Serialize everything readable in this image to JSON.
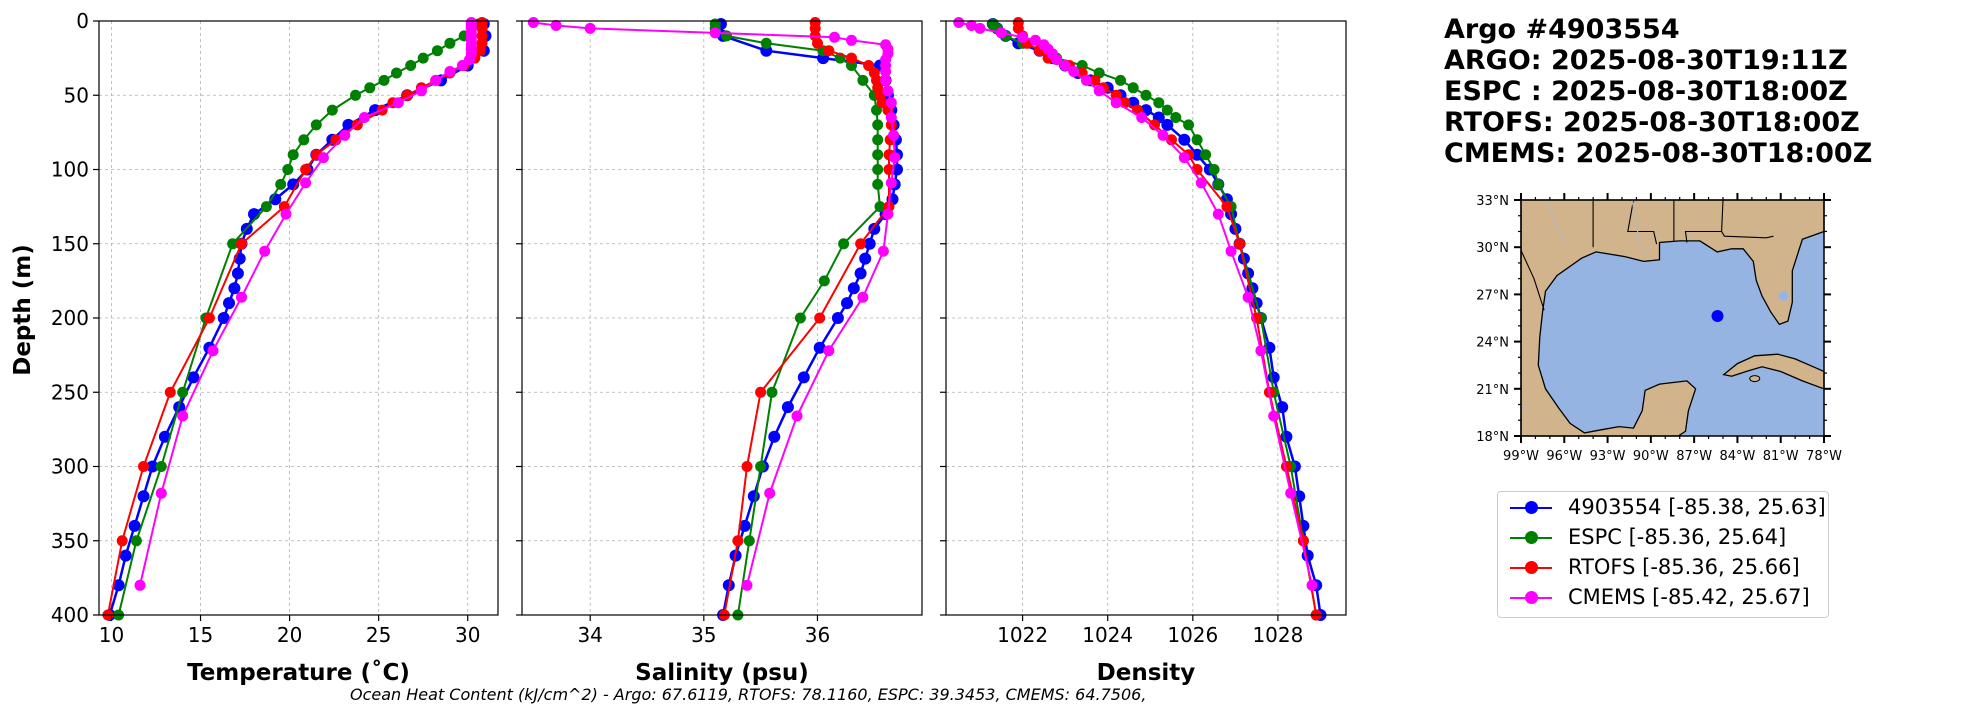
{
  "title": {
    "lines": [
      "Argo #4903554",
      "ARGO: 2025-08-30T19:11Z",
      "ESPC : 2025-08-30T18:00Z",
      "RTOFS: 2025-08-30T18:00Z",
      "CMEMS: 2025-08-30T18:00Z"
    ]
  },
  "footer": "Ocean Heat Content (kJ/cm^2) - Argo: 67.6119,  RTOFS: 78.1160,  ESPC: 39.3453,  CMEMS: 64.7506,",
  "legend": [
    {
      "label": "4903554 [-85.38, 25.63]",
      "color": "#0000ff"
    },
    {
      "label": "ESPC [-85.36, 25.64]",
      "color": "#008000"
    },
    {
      "label": "RTOFS [-85.36, 25.66]",
      "color": "#ff0000"
    },
    {
      "label": "CMEMS [-85.42, 25.67]",
      "color": "#ff00ff"
    }
  ],
  "colors": {
    "argo": "#0000ff",
    "espc": "#008000",
    "rtofs": "#ff0000",
    "cmems": "#ff00ff",
    "land": "#d2b48c",
    "water": "#96b4e1"
  },
  "chart_data": [
    {
      "type": "line",
      "xlabel": "Temperature (˚C)",
      "ylabel": "Depth (m)",
      "xlim": [
        9.3,
        31.7
      ],
      "ylim": [
        400,
        0
      ],
      "xticks": [
        10,
        15,
        20,
        25,
        30
      ],
      "yticks": [
        0,
        50,
        100,
        150,
        200,
        250,
        300,
        350,
        400
      ],
      "grid": true,
      "series": [
        {
          "key": "argo",
          "depth": [
            2,
            10,
            20,
            30,
            40,
            50,
            60,
            70,
            80,
            90,
            100,
            110,
            120,
            130,
            140,
            150,
            160,
            170,
            180,
            190,
            200,
            220,
            240,
            260,
            280,
            300,
            320,
            340,
            360,
            380,
            400
          ],
          "values": [
            30.9,
            31.0,
            30.9,
            30.0,
            28.5,
            26.6,
            24.8,
            23.3,
            22.4,
            21.5,
            21.0,
            20.2,
            19.2,
            18.0,
            17.6,
            17.3,
            17.2,
            17.1,
            16.9,
            16.6,
            16.3,
            15.5,
            14.6,
            13.8,
            13.0,
            12.3,
            11.8,
            11.3,
            10.8,
            10.4,
            9.9
          ]
        },
        {
          "key": "espc",
          "depth": [
            2,
            5,
            10,
            15,
            20,
            25,
            30,
            35,
            40,
            45,
            50,
            60,
            70,
            80,
            90,
            100,
            110,
            125,
            150,
            200,
            250,
            300,
            350,
            400
          ],
          "values": [
            30.6,
            30.2,
            29.8,
            29.0,
            28.3,
            27.5,
            26.8,
            26.0,
            25.3,
            24.5,
            23.7,
            22.4,
            21.5,
            20.8,
            20.2,
            19.9,
            19.5,
            18.7,
            16.8,
            15.3,
            14.0,
            12.8,
            11.4,
            10.4
          ]
        },
        {
          "key": "rtofs",
          "depth": [
            1,
            5,
            10,
            15,
            20,
            25,
            30,
            35,
            40,
            45,
            50,
            55,
            60,
            70,
            80,
            90,
            100,
            125,
            150,
            200,
            250,
            300,
            350,
            400
          ],
          "values": [
            30.8,
            30.8,
            30.8,
            30.8,
            30.7,
            30.4,
            29.8,
            29.0,
            28.2,
            27.4,
            26.6,
            25.8,
            25.2,
            23.8,
            22.6,
            21.5,
            20.9,
            19.7,
            17.3,
            15.5,
            13.3,
            11.8,
            10.6,
            9.8
          ]
        },
        {
          "key": "cmems",
          "depth": [
            1,
            3,
            5,
            8,
            11,
            13,
            16,
            19,
            22,
            26,
            30,
            34,
            40,
            47,
            55,
            65,
            77,
            92,
            109,
            130,
            155,
            186,
            222,
            266,
            318,
            380
          ],
          "values": [
            30.2,
            30.2,
            30.2,
            30.2,
            30.2,
            30.2,
            30.2,
            30.2,
            30.2,
            30.1,
            29.7,
            29.0,
            28.2,
            27.4,
            26.1,
            24.2,
            23.1,
            21.9,
            20.9,
            19.8,
            18.6,
            17.3,
            15.7,
            14.0,
            12.8,
            11.6
          ]
        }
      ]
    },
    {
      "type": "line",
      "xlabel": "Salinity (psu)",
      "xlim": [
        33.4,
        36.92
      ],
      "ylim": [
        400,
        0
      ],
      "xticks": [
        34,
        35,
        36
      ],
      "grid": true,
      "series": [
        {
          "key": "argo",
          "depth": [
            2,
            10,
            20,
            25,
            30,
            40,
            50,
            60,
            70,
            80,
            90,
            100,
            110,
            120,
            130,
            140,
            150,
            160,
            170,
            180,
            190,
            200,
            220,
            240,
            260,
            280,
            300,
            320,
            340,
            360,
            380,
            400
          ],
          "values": [
            35.15,
            35.17,
            35.55,
            36.05,
            36.55,
            36.6,
            36.62,
            36.65,
            36.67,
            36.69,
            36.7,
            36.7,
            36.68,
            36.66,
            36.6,
            36.5,
            36.46,
            36.42,
            36.38,
            36.32,
            36.26,
            36.18,
            36.02,
            35.88,
            35.74,
            35.62,
            35.52,
            35.44,
            35.36,
            35.28,
            35.22,
            35.17
          ]
        },
        {
          "key": "espc",
          "depth": [
            2,
            5,
            10,
            15,
            20,
            25,
            30,
            40,
            50,
            60,
            70,
            80,
            90,
            100,
            110,
            125,
            150,
            175,
            200,
            250,
            300,
            350,
            400
          ],
          "values": [
            35.1,
            35.1,
            35.2,
            35.55,
            36.05,
            36.2,
            36.3,
            36.4,
            36.5,
            36.52,
            36.53,
            36.53,
            36.53,
            36.53,
            36.53,
            36.55,
            36.23,
            36.06,
            35.85,
            35.6,
            35.5,
            35.4,
            35.3
          ]
        },
        {
          "key": "rtofs",
          "depth": [
            1,
            5,
            10,
            15,
            20,
            25,
            30,
            35,
            40,
            45,
            50,
            55,
            60,
            70,
            80,
            90,
            100,
            125,
            150,
            200,
            250,
            300,
            350,
            400
          ],
          "values": [
            35.98,
            35.98,
            35.98,
            36.0,
            36.1,
            36.3,
            36.45,
            36.5,
            36.52,
            36.53,
            36.55,
            36.57,
            36.62,
            36.65,
            36.64,
            36.63,
            36.63,
            36.63,
            36.38,
            36.02,
            35.5,
            35.38,
            35.3,
            35.18
          ]
        },
        {
          "key": "cmems",
          "depth": [
            1,
            3,
            5,
            8,
            11,
            13,
            16,
            19,
            22,
            26,
            30,
            34,
            40,
            47,
            55,
            65,
            77,
            92,
            109,
            130,
            155,
            186,
            222,
            266,
            318,
            380
          ],
          "values": [
            33.5,
            33.7,
            34.0,
            35.1,
            36.15,
            36.3,
            36.6,
            36.62,
            36.62,
            36.6,
            36.6,
            36.6,
            36.6,
            36.62,
            36.65,
            36.65,
            36.67,
            36.68,
            36.65,
            36.62,
            36.58,
            36.4,
            36.1,
            35.82,
            35.58,
            35.38
          ]
        }
      ]
    },
    {
      "type": "line",
      "xlabel": "Density",
      "xlim": [
        1020.2,
        1029.6
      ],
      "ylim": [
        400,
        0
      ],
      "xticks": [
        1022,
        1024,
        1026,
        1028
      ],
      "grid": true,
      "series": [
        {
          "key": "argo",
          "depth": [
            2,
            5,
            10,
            15,
            20,
            25,
            30,
            35,
            40,
            45,
            50,
            55,
            60,
            65,
            70,
            80,
            90,
            100,
            110,
            120,
            130,
            140,
            150,
            160,
            170,
            180,
            190,
            200,
            220,
            240,
            260,
            280,
            300,
            320,
            340,
            360,
            380,
            400
          ],
          "values": [
            1021.3,
            1021.4,
            1021.6,
            1021.9,
            1022.4,
            1022.7,
            1023.0,
            1023.3,
            1023.6,
            1024.0,
            1024.3,
            1024.6,
            1024.9,
            1025.2,
            1025.4,
            1025.8,
            1026.1,
            1026.4,
            1026.6,
            1026.8,
            1026.9,
            1027.0,
            1027.1,
            1027.2,
            1027.3,
            1027.4,
            1027.5,
            1027.6,
            1027.8,
            1027.9,
            1028.1,
            1028.2,
            1028.4,
            1028.5,
            1028.6,
            1028.7,
            1028.9,
            1029.0
          ]
        },
        {
          "key": "espc",
          "depth": [
            2,
            5,
            10,
            15,
            20,
            25,
            30,
            35,
            40,
            45,
            50,
            55,
            60,
            65,
            70,
            80,
            90,
            100,
            110,
            125,
            150,
            200,
            250,
            300,
            350,
            400
          ],
          "values": [
            1021.3,
            1021.4,
            1021.6,
            1022.0,
            1022.5,
            1022.8,
            1023.4,
            1023.8,
            1024.3,
            1024.6,
            1024.9,
            1025.2,
            1025.4,
            1025.6,
            1025.9,
            1026.1,
            1026.3,
            1026.5,
            1026.6,
            1026.9,
            1027.1,
            1027.6,
            1027.9,
            1028.3,
            1028.6,
            1028.9
          ]
        },
        {
          "key": "rtofs",
          "depth": [
            1,
            5,
            10,
            15,
            20,
            25,
            30,
            35,
            40,
            45,
            50,
            55,
            60,
            70,
            80,
            90,
            100,
            125,
            150,
            200,
            250,
            300,
            350,
            400
          ],
          "values": [
            1021.9,
            1021.9,
            1022.0,
            1022.1,
            1022.4,
            1022.6,
            1023.1,
            1023.4,
            1023.7,
            1023.9,
            1024.2,
            1024.4,
            1024.7,
            1025.1,
            1025.5,
            1025.9,
            1026.1,
            1026.8,
            1027.1,
            1027.5,
            1027.8,
            1028.2,
            1028.6,
            1028.9
          ]
        },
        {
          "key": "cmems",
          "depth": [
            1,
            3,
            5,
            8,
            11,
            13,
            16,
            19,
            22,
            26,
            30,
            34,
            40,
            47,
            55,
            65,
            77,
            92,
            109,
            130,
            155,
            186,
            222,
            266,
            318,
            380
          ],
          "values": [
            1020.5,
            1020.8,
            1021.0,
            1021.5,
            1022.0,
            1022.3,
            1022.5,
            1022.6,
            1022.7,
            1022.8,
            1023.0,
            1023.2,
            1023.5,
            1023.8,
            1024.2,
            1024.8,
            1025.3,
            1025.8,
            1026.2,
            1026.6,
            1026.9,
            1027.3,
            1027.6,
            1027.9,
            1028.3,
            1028.8
          ]
        }
      ]
    }
  ],
  "map": {
    "lon_range": [
      -99,
      -78
    ],
    "lat_range": [
      18,
      33
    ],
    "lon_ticks": [
      "99°W",
      "96°W",
      "93°W",
      "90°W",
      "87°W",
      "84°W",
      "81°W",
      "78°W"
    ],
    "lat_ticks": [
      "33°N",
      "30°N",
      "27°N",
      "24°N",
      "21°N",
      "18°N"
    ],
    "float": {
      "lon": -85.38,
      "lat": 25.63
    }
  }
}
